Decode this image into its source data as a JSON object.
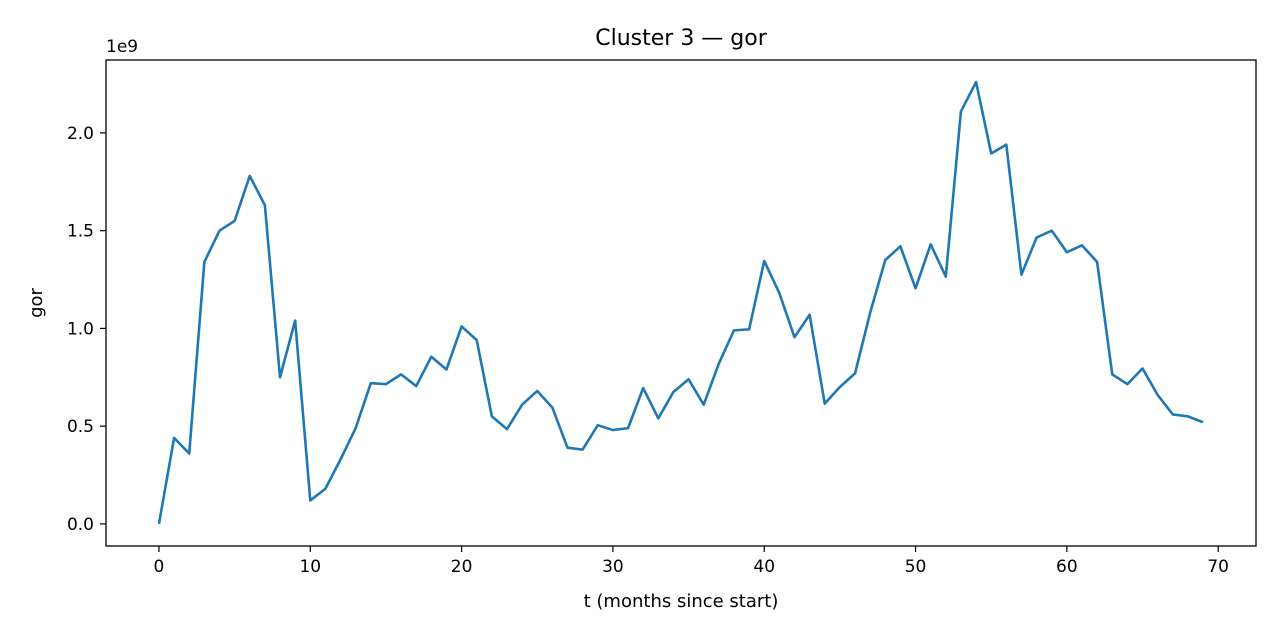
{
  "chart_data": {
    "type": "line",
    "title": "Cluster 3 — gor",
    "xlabel": "t (months since start)",
    "ylabel": "gor",
    "y_offset_label": "1e9",
    "xlim": [
      -3.5,
      72.5
    ],
    "ylim": [
      -0.113,
      2.373
    ],
    "x_ticks": [
      0,
      10,
      20,
      30,
      40,
      50,
      60,
      70
    ],
    "y_ticks": [
      0.0,
      0.5,
      1.0,
      1.5,
      2.0
    ],
    "y_tick_labels": [
      "0.0",
      "0.5",
      "1.0",
      "1.5",
      "2.0"
    ],
    "grid": false,
    "legend": "none",
    "series_color": "#1f77b4",
    "series": [
      {
        "x": [
          0,
          1,
          2,
          3,
          4,
          5,
          6,
          7,
          8,
          9,
          10,
          11,
          12,
          13,
          14,
          15,
          16,
          17,
          18,
          19,
          20,
          21,
          22,
          23,
          24,
          25,
          26,
          27,
          28,
          29,
          30,
          31,
          32,
          33,
          34,
          35,
          36,
          37,
          38,
          39,
          40,
          41,
          42,
          43,
          44,
          45,
          46,
          47,
          48,
          49,
          50,
          51,
          52,
          53,
          54,
          55,
          56,
          57,
          58,
          59,
          60,
          61,
          62,
          63,
          64,
          65,
          66,
          67,
          68,
          69
        ],
        "values": [
          0.0,
          0.44,
          0.36,
          1.34,
          1.5,
          1.55,
          1.78,
          1.63,
          0.75,
          1.04,
          0.12,
          0.18,
          0.33,
          0.49,
          0.72,
          0.715,
          0.765,
          0.705,
          0.855,
          0.79,
          1.01,
          0.94,
          0.55,
          0.485,
          0.61,
          0.68,
          0.595,
          0.39,
          0.38,
          0.505,
          0.48,
          0.49,
          0.695,
          0.54,
          0.675,
          0.74,
          0.61,
          0.82,
          0.99,
          0.995,
          1.345,
          1.18,
          0.955,
          1.07,
          0.615,
          0.7,
          0.77,
          1.08,
          1.35,
          1.42,
          1.205,
          1.43,
          1.265,
          2.11,
          2.26,
          1.895,
          1.94,
          1.275,
          1.465,
          1.5,
          1.39,
          1.425,
          1.34,
          0.765,
          0.715,
          0.795,
          0.66,
          0.56,
          0.55,
          0.52
        ]
      }
    ]
  }
}
